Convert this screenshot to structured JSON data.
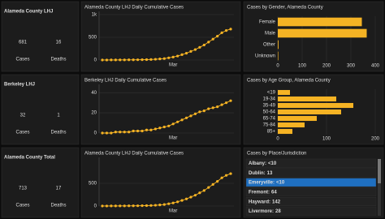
{
  "panels": [
    {
      "title": "Alameda County LHJ",
      "cases": "681",
      "cases_label": "Cases",
      "deaths": "16",
      "deaths_label": "Deaths"
    },
    {
      "title": "Berkeley LHJ",
      "cases": "32",
      "cases_label": "Cases",
      "deaths": "1",
      "deaths_label": "Deaths"
    },
    {
      "title": "Alameda County Total",
      "cases": "713",
      "cases_label": "Cases",
      "deaths": "17",
      "deaths_label": "Deaths"
    }
  ],
  "chart_data": [
    {
      "type": "line",
      "title": "Alameda County LHJ Daily Cumulative Cases",
      "color": "#f5b324",
      "grid": true,
      "categories": [
        null,
        null,
        null,
        null,
        null,
        null,
        null,
        null,
        null,
        null,
        null,
        null,
        null,
        null,
        null,
        null,
        "Mar",
        null,
        null,
        null,
        null,
        null,
        null,
        null,
        null,
        null,
        null,
        null,
        null,
        null
      ],
      "values": [
        1,
        1,
        2,
        2,
        3,
        3,
        4,
        5,
        6,
        7,
        9,
        12,
        17,
        24,
        32,
        48,
        65,
        88,
        118,
        150,
        190,
        230,
        280,
        330,
        395,
        460,
        525,
        600,
        650,
        681
      ],
      "ylim": [
        0,
        1000
      ],
      "yticks": [
        0,
        500,
        {
          "value": 1000,
          "label": "1k"
        }
      ]
    },
    {
      "type": "line",
      "title": "Berkeley LHJ Daily Cumulative Cases",
      "color": "#f5b324",
      "grid": true,
      "categories": [
        null,
        null,
        null,
        null,
        null,
        null,
        null,
        null,
        null,
        null,
        null,
        null,
        null,
        null,
        null,
        null,
        "Mar",
        null,
        null,
        null,
        null,
        null,
        null,
        null,
        null,
        null,
        null,
        null,
        null,
        null
      ],
      "values": [
        0,
        0,
        0,
        1,
        1,
        1,
        1,
        2,
        2,
        2,
        3,
        3,
        4,
        5,
        6,
        7,
        9,
        11,
        13,
        15,
        17,
        19,
        21,
        22,
        24,
        25,
        26,
        28,
        30,
        32
      ],
      "ylim": [
        0,
        45
      ],
      "yticks": [
        0,
        20,
        40
      ]
    },
    {
      "type": "line",
      "title": "Alameda County LHJ Daily Cumulative Cases",
      "color": "#f5b324",
      "grid": true,
      "categories": [
        null,
        null,
        null,
        null,
        null,
        null,
        null,
        null,
        null,
        null,
        null,
        null,
        null,
        null,
        null,
        null,
        "Mar",
        null,
        null,
        null,
        null,
        null,
        null,
        null,
        null,
        null,
        null,
        null,
        null,
        null
      ],
      "values": [
        1,
        1,
        2,
        2,
        3,
        3,
        4,
        5,
        6,
        7,
        9,
        12,
        17,
        24,
        33,
        50,
        68,
        92,
        123,
        156,
        197,
        238,
        290,
        341,
        408,
        475,
        542,
        620,
        675,
        713
      ],
      "ylim": [
        0,
        1000
      ],
      "yticks": [
        0,
        500
      ]
    },
    {
      "type": "hbar",
      "title": "Cases by Gender, Alameda County",
      "color": "#f5b324",
      "grid": true,
      "categories": [
        "Female",
        "Male",
        "Other",
        "Unknown"
      ],
      "values": [
        345,
        365,
        3,
        2
      ],
      "xlim": [
        0,
        400
      ],
      "xticks": [
        0,
        100,
        200,
        300,
        400
      ]
    },
    {
      "type": "hbar",
      "title": "Cases by Age Group, Alameda County",
      "color": "#f5b324",
      "grid": true,
      "categories": [
        "<19",
        "19-34",
        "35-49",
        "50-64",
        "65-74",
        "75-84",
        "85+"
      ],
      "values": [
        25,
        120,
        155,
        130,
        80,
        55,
        30
      ],
      "xlim": [
        0,
        200
      ],
      "xticks": [
        0,
        100,
        200
      ]
    }
  ],
  "place_list": {
    "title": "Cases by Place/Jurisdiction",
    "selected_index": 2,
    "items": [
      {
        "name": "Albany:",
        "value": "<10"
      },
      {
        "name": "Dublin:",
        "value": "13"
      },
      {
        "name": "Emeryville:",
        "value": "<10"
      },
      {
        "name": "Fremont:",
        "value": "64"
      },
      {
        "name": "Hayward:",
        "value": "142"
      },
      {
        "name": "Livermore:",
        "value": "28"
      }
    ]
  }
}
